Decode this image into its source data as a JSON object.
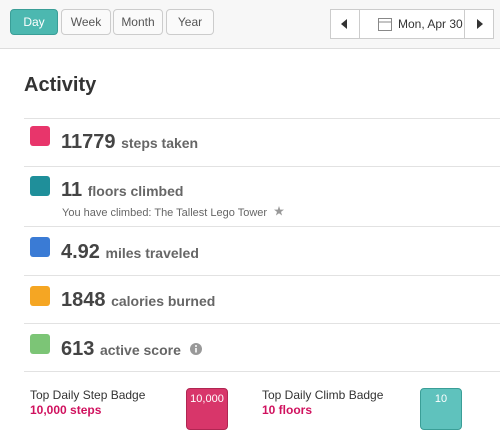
{
  "tabs": [
    "Day",
    "Week",
    "Month",
    "Year"
  ],
  "date": "Mon, Apr 30",
  "heading": "Activity",
  "items": [
    {
      "value": "11779",
      "label": "steps taken"
    },
    {
      "value": "11",
      "label": "floors climbed",
      "note": "You have climbed: The Tallest Lego Tower"
    },
    {
      "value": "4.92",
      "label": "miles traveled"
    },
    {
      "value": "1848",
      "label": "calories burned"
    },
    {
      "value": "613",
      "label": "active score"
    }
  ],
  "badges": [
    {
      "title": "Top Daily Step Badge",
      "value": "10,000 steps",
      "badge": "10,000"
    },
    {
      "title": "Top Daily Climb Badge",
      "value": "10 floors",
      "badge": "10"
    }
  ]
}
